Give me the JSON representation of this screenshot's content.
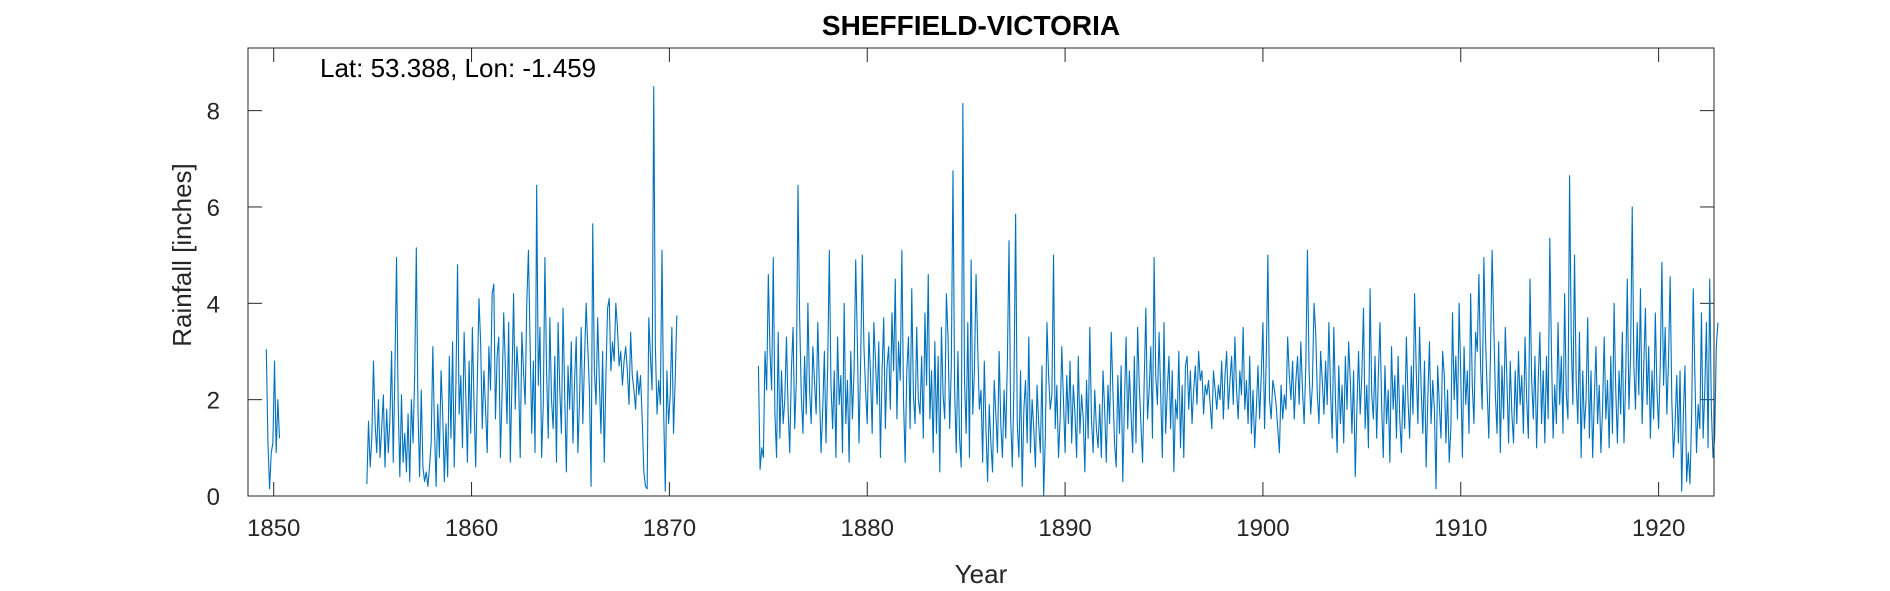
{
  "colors": {
    "series": "#0072BD",
    "axis": "#262626",
    "background": "#ffffff"
  },
  "chart_data": {
    "type": "line",
    "title": "SHEFFIELD-VICTORIA",
    "xlabel": "Year",
    "ylabel": "Rainfall [inches]",
    "annotation": "Lat: 53.388, Lon: -1.459",
    "xlim": [
      1848.7,
      1922.8
    ],
    "ylim": [
      0,
      9.3
    ],
    "xticks": [
      1850,
      1860,
      1870,
      1880,
      1890,
      1900,
      1910,
      1920
    ],
    "yticks": [
      0,
      2,
      4,
      6,
      8
    ],
    "grid": false,
    "series": [
      {
        "segments": [
          {
            "start": 1849.625,
            "values": [
              3.05,
              1.1,
              0.15,
              0.9,
              1.1,
              2.8,
              0.9,
              2.0,
              1.2
            ]
          },
          {
            "start": 1854.708,
            "values": [
              0.25,
              1.55,
              0.6,
              1.2,
              2.8,
              1.5,
              0.9,
              2.0,
              0.8,
              1.4,
              2.1,
              0.6,
              1.8,
              0.9,
              1.6,
              3.0,
              0.7,
              2.6,
              4.95,
              1.9,
              0.4,
              2.1,
              0.7,
              1.3,
              0.5,
              1.7,
              0.3,
              2.0,
              1.1,
              2.5,
              5.15,
              1.8,
              0.4,
              2.2,
              0.6,
              0.3,
              0.5,
              0.2,
              0.6,
              1.1,
              3.1,
              1.4,
              0.2,
              1.9,
              0.8,
              2.6,
              1.7,
              0.3,
              1.5,
              0.4,
              2.9,
              1.2,
              3.2,
              0.6,
              2.3,
              4.8,
              1.7,
              2.5,
              1.0,
              3.4,
              2.1,
              0.7,
              2.8,
              1.3,
              3.5,
              1.9,
              0.6,
              2.4,
              4.1,
              3.2,
              1.4,
              2.6,
              1.8,
              0.9,
              3.1,
              2.2,
              4.2,
              4.4,
              1.6,
              2.9,
              3.3,
              0.8,
              2.1,
              3.8,
              2.7,
              1.5,
              3.6,
              0.7,
              2.4,
              4.2,
              1.8,
              3.1,
              2.5,
              0.8,
              3.4,
              2.6,
              1.9,
              4.0,
              5.1,
              3.2,
              1.3,
              2.8,
              0.9,
              6.45,
              2.3,
              3.5,
              0.8,
              1.9,
              4.95,
              2.6,
              1.2,
              3.7,
              2.0,
              1.4,
              2.9,
              0.7,
              3.6,
              2.2,
              1.3,
              3.9,
              2.1,
              0.5,
              2.7,
              1.8,
              3.2,
              1.1,
              2.4,
              3.3,
              0.9,
              2.0,
              3.5,
              1.5,
              2.8,
              4.0,
              3.1,
              2.2,
              0.2,
              5.65,
              2.6,
              1.9,
              3.7,
              2.4,
              1.3,
              3.0,
              0.7,
              2.5,
              3.9,
              4.1,
              2.6,
              3.2,
              2.8,
              4.0,
              3.5,
              2.7,
              3.0,
              2.3,
              2.8,
              3.1,
              2.6,
              1.9,
              3.4,
              2.5,
              2.2,
              1.8,
              2.6,
              2.1,
              2.5,
              1.6,
              0.5,
              0.2,
              0.15,
              3.7,
              2.9,
              2.2,
              8.5,
              3.1,
              1.7,
              2.4,
              1.9,
              5.1,
              1.8,
              0.1,
              2.6,
              1.5,
              2.1,
              3.5,
              1.3,
              2.4,
              3.75
            ]
          },
          {
            "start": 1874.5,
            "values": [
              2.7,
              0.55,
              1.0,
              0.8,
              3.0,
              2.2,
              4.6,
              3.0,
              2.2,
              4.95,
              1.7,
              0.8,
              3.4,
              1.2,
              2.6,
              1.5,
              2.0,
              3.3,
              1.8,
              0.9,
              2.6,
              3.5,
              1.4,
              2.4,
              6.45,
              3.7,
              2.1,
              1.3,
              2.9,
              1.7,
              4.0,
              2.2,
              1.5,
              3.1,
              2.4,
              1.7,
              3.6,
              2.2,
              0.9,
              1.8,
              3.0,
              1.1,
              2.7,
              5.1,
              2.3,
              1.4,
              2.6,
              0.8,
              3.3,
              1.9,
              2.5,
              0.9,
              4.0,
              1.5,
              2.4,
              0.7,
              3.0,
              1.6,
              2.6,
              4.9,
              3.2,
              1.1,
              2.8,
              5.0,
              3.1,
              2.2,
              1.5,
              3.4,
              2.5,
              1.3,
              3.6,
              2.8,
              1.9,
              3.2,
              0.8,
              2.6,
              3.7,
              1.4,
              2.7,
              3.1,
              1.8,
              3.8,
              2.6,
              4.5,
              1.6,
              3.2,
              2.4,
              5.1,
              2.0,
              0.7,
              2.6,
              3.3,
              1.4,
              4.3,
              2.1,
              1.5,
              3.5,
              2.0,
              1.7,
              2.9,
              1.2,
              3.8,
              2.3,
              4.6,
              1.6,
              2.6,
              0.9,
              3.2,
              1.3,
              2.9,
              0.5,
              3.5,
              2.1,
              1.6,
              4.2,
              3.3,
              1.4,
              2.7,
              6.75,
              2.2,
              0.9,
              3.0,
              1.2,
              0.6,
              8.15,
              2.4,
              1.3,
              3.6,
              0.8,
              4.9,
              1.7,
              2.6,
              4.6,
              3.1,
              1.8,
              2.2,
              0.7,
              2.8,
              1.4,
              0.3,
              1.9,
              1.1,
              0.5,
              2.4,
              1.7,
              0.9,
              3.0,
              1.5,
              0.8,
              2.2,
              1.2,
              2.8,
              5.3,
              1.6,
              0.6,
              2.3,
              5.85,
              1.5,
              0.8,
              2.6,
              0.2,
              1.8,
              2.4,
              1.1,
              3.3,
              0.9,
              2.0,
              1.4,
              0.6,
              2.3,
              1.5,
              0.9,
              2.7,
              0.0,
              1.2,
              3.6,
              2.5,
              1.8,
              2.1,
              5.0,
              1.4,
              2.3,
              0.8,
              1.6,
              3.1,
              2.0,
              0.9,
              2.5,
              1.5,
              2.8,
              1.1,
              2.3,
              1.7,
              0.8,
              2.9,
              1.3,
              2.1,
              1.6,
              0.5,
              2.4,
              1.2,
              3.5,
              1.6,
              0.9,
              2.2,
              1.4,
              1.0,
              1.9,
              0.8,
              2.6,
              1.8,
              0.7,
              2.3,
              1.5,
              3.4,
              2.2,
              1.1,
              0.6,
              2.5,
              1.3,
              2.7,
              0.3,
              1.9,
              3.3,
              1.4,
              2.6,
              1.7,
              0.9,
              2.9,
              1.1,
              3.5,
              2.3,
              1.5,
              0.7,
              2.4,
              3.9,
              1.6,
              2.2,
              3.1,
              1.2,
              4.95,
              2.5,
              1.9,
              3.4,
              2.1,
              0.8,
              3.6,
              1.3,
              2.2,
              2.9,
              1.4,
              2.6,
              0.5,
              2.0,
              1.6,
              3.0,
              1.0,
              2.3,
              0.8,
              2.7,
              2.9,
              1.8,
              2.6,
              1.5,
              2.2,
              2.7,
              1.9,
              3.0,
              2.4,
              2.6,
              1.7,
              2.3,
              2.1,
              2.4,
              1.9,
              1.4,
              2.6,
              2.2,
              1.8,
              2.3,
              2.0,
              2.8,
              1.6,
              2.5,
              3.0,
              1.8,
              2.4,
              2.9,
              1.9,
              3.3,
              2.2,
              1.6,
              2.6,
              2.1,
              3.5,
              1.8,
              2.4,
              1.5,
              2.9,
              1.3,
              2.2,
              1.0,
              1.8,
              2.7,
              1.6,
              2.5,
              3.6,
              1.4,
              2.8,
              5.0,
              2.0,
              1.6,
              2.4,
              2.2,
              1.9,
              1.4,
              0.9,
              2.3,
              1.6,
              2.1,
              1.8,
              3.3,
              2.5,
              2.0,
              2.8,
              1.6,
              2.4,
              2.9,
              1.9,
              3.2,
              2.2,
              1.5,
              2.7,
              5.1,
              2.6,
              1.7,
              2.3,
              4.0,
              3.4,
              2.1,
              1.5,
              3.0,
              2.4,
              1.7,
              2.8,
              1.9,
              3.6,
              2.2,
              1.2,
              3.5,
              2.0,
              0.9,
              2.7,
              1.5,
              2.3,
              1.1,
              2.9,
              1.8,
              3.2,
              2.4,
              1.3,
              2.6,
              0.4,
              1.8,
              3.0,
              1.7,
              2.5,
              3.9,
              1.4,
              2.3,
              1.0,
              4.3,
              2.1,
              1.6,
              2.9,
              1.2,
              2.5,
              3.6,
              1.9,
              0.8,
              2.7,
              1.5,
              2.2,
              0.7,
              3.1,
              1.8,
              2.5,
              1.2,
              2.9,
              1.6,
              0.9,
              2.3,
              1.4,
              3.3,
              2.0,
              1.2,
              2.7,
              1.7,
              4.2,
              2.6,
              1.5,
              3.5,
              2.2,
              1.3,
              2.8,
              0.6,
              2.0,
              3.2,
              1.5,
              2.4,
              1.8,
              0.15,
              2.7,
              1.9,
              1.2,
              3.0,
              2.5,
              1.1,
              2.2,
              0.7,
              1.4,
              3.8,
              2.0,
              2.9,
              1.6,
              4.0,
              2.5,
              0.8,
              3.1,
              1.9,
              2.6,
              1.3,
              4.2,
              2.3,
              1.5,
              3.4,
              3.0,
              4.6,
              2.7,
              1.8,
              4.95,
              3.3,
              2.2,
              1.2,
              2.9,
              5.1,
              3.6,
              2.1,
              1.3,
              3.2,
              0.9,
              2.7,
              1.6,
              3.5,
              2.4,
              1.1,
              2.8,
              1.7,
              1.1,
              2.6,
              1.5,
              3.0,
              1.9,
              2.5,
              1.3,
              3.3,
              2.0,
              1.2,
              4.5,
              2.4,
              1.6,
              2.9,
              1.0,
              2.4,
              3.4,
              1.5,
              2.6,
              1.1,
              2.9,
              1.6,
              5.35,
              3.0,
              1.2,
              2.3,
              1.5,
              3.6,
              1.9,
              2.9,
              1.3,
              4.2,
              2.1,
              1.6,
              6.65,
              3.3,
              1.9,
              5.0,
              2.4,
              1.5,
              3.4,
              0.8,
              2.6,
              1.4,
              2.0,
              3.7,
              1.2,
              2.6,
              0.8,
              2.0,
              3.1,
              1.5,
              2.3,
              0.9,
              1.8,
              3.3,
              1.6,
              2.4,
              1.0,
              2.9,
              1.3,
              4.0,
              2.2,
              1.1,
              2.6,
              1.7,
              3.4,
              1.1,
              2.4,
              4.5,
              1.8,
              2.9,
              6.0,
              2.7,
              1.8,
              3.6,
              2.1,
              4.3,
              1.5,
              2.7,
              3.9,
              1.9,
              3.1,
              1.2,
              2.6,
              1.6,
              3.8,
              2.2,
              1.4,
              2.7,
              4.85,
              2.3,
              3.5,
              1.7,
              2.8,
              4.55,
              2.0,
              0.8,
              1.5,
              2.5,
              1.1,
              2.6,
              0.1,
              1.7,
              2.7,
              0.3,
              0.9,
              0.25,
              1.6,
              4.3,
              2.5,
              0.9,
              1.9,
              1.4,
              3.8,
              1.2,
              2.2,
              3.6,
              1.0,
              4.5,
              1.8,
              0.8,
              1.2,
              3.1,
              3.6
            ]
          }
        ]
      }
    ]
  }
}
